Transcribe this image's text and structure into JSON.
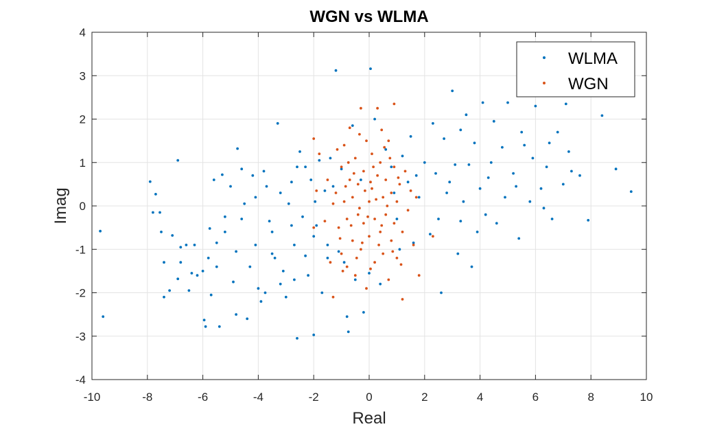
{
  "chart_data": {
    "type": "scatter",
    "title": "WGN vs WLMA",
    "xlabel": "Real",
    "ylabel": "Imag",
    "xlim": [
      -10,
      10
    ],
    "ylim": [
      -4,
      4
    ],
    "xticks": [
      -10,
      -8,
      -6,
      -4,
      -2,
      0,
      2,
      4,
      6,
      8,
      10
    ],
    "yticks": [
      -4,
      -3,
      -2,
      -1,
      0,
      1,
      2,
      3,
      4
    ],
    "grid": true,
    "legend_position": "top-right",
    "series": [
      {
        "name": "WLMA",
        "color": "#0072BD",
        "points": [
          [
            -9.7,
            -0.58
          ],
          [
            -9.6,
            -2.55
          ],
          [
            -7.9,
            0.56
          ],
          [
            -7.8,
            -0.15
          ],
          [
            -7.7,
            0.27
          ],
          [
            -7.55,
            -0.15
          ],
          [
            -7.4,
            -1.3
          ],
          [
            -7.4,
            -2.1
          ],
          [
            -7.2,
            -1.95
          ],
          [
            -7.1,
            -0.68
          ],
          [
            -6.9,
            1.05
          ],
          [
            -6.9,
            -1.68
          ],
          [
            -6.8,
            -0.95
          ],
          [
            -6.6,
            -0.9
          ],
          [
            -6.5,
            -1.95
          ],
          [
            -6.4,
            -1.55
          ],
          [
            -6.2,
            -1.6
          ],
          [
            -6.0,
            -1.5
          ],
          [
            -5.95,
            -2.63
          ],
          [
            -5.9,
            -2.78
          ],
          [
            -5.8,
            -1.2
          ],
          [
            -5.75,
            -0.52
          ],
          [
            -5.7,
            -2.05
          ],
          [
            -5.6,
            0.6
          ],
          [
            -5.5,
            -0.85
          ],
          [
            -5.4,
            -2.78
          ],
          [
            -5.3,
            0.72
          ],
          [
            -5.2,
            -0.25
          ],
          [
            -5.0,
            0.45
          ],
          [
            -4.9,
            -1.75
          ],
          [
            -4.8,
            -2.5
          ],
          [
            -4.75,
            1.32
          ],
          [
            -4.6,
            0.85
          ],
          [
            -4.5,
            0.05
          ],
          [
            -4.4,
            -2.6
          ],
          [
            -4.3,
            -1.4
          ],
          [
            -4.2,
            0.7
          ],
          [
            -4.1,
            -0.9
          ],
          [
            -4.0,
            -1.9
          ],
          [
            -3.9,
            -2.2
          ],
          [
            -3.8,
            0.8
          ],
          [
            -3.75,
            -2.0
          ],
          [
            -3.6,
            -0.35
          ],
          [
            -3.5,
            -1.1
          ],
          [
            -3.4,
            -1.2
          ],
          [
            -3.3,
            1.9
          ],
          [
            -3.2,
            0.3
          ],
          [
            -3.1,
            -1.5
          ],
          [
            -3.0,
            -2.1
          ],
          [
            -2.9,
            0.05
          ],
          [
            -2.8,
            -0.45
          ],
          [
            -2.7,
            -0.9
          ],
          [
            -2.6,
            0.9
          ],
          [
            -2.5,
            1.25
          ],
          [
            -2.4,
            -0.25
          ],
          [
            -2.3,
            -1.15
          ],
          [
            -2.2,
            -1.6
          ],
          [
            -2.1,
            0.6
          ],
          [
            -2.0,
            -0.7
          ],
          [
            -1.95,
            0.1
          ],
          [
            -1.9,
            -0.45
          ],
          [
            -1.8,
            1.05
          ],
          [
            -1.7,
            -2.0
          ],
          [
            -2.0,
            -2.97
          ],
          [
            -2.6,
            -3.05
          ],
          [
            -1.6,
            0.35
          ],
          [
            -1.5,
            -0.9
          ],
          [
            -1.4,
            1.1
          ],
          [
            -1.3,
            0.45
          ],
          [
            -1.2,
            3.12
          ],
          [
            -1.1,
            -1.05
          ],
          [
            -1.0,
            0.85
          ],
          [
            -0.9,
            -1.3
          ],
          [
            -0.8,
            -2.55
          ],
          [
            -0.75,
            -2.9
          ],
          [
            -0.6,
            1.85
          ],
          [
            -0.5,
            -1.7
          ],
          [
            -0.3,
            0.6
          ],
          [
            -0.2,
            -2.45
          ],
          [
            0.05,
            3.16
          ],
          [
            0.0,
            -1.55
          ],
          [
            0.2,
            2.0
          ],
          [
            0.4,
            -1.8
          ],
          [
            0.6,
            1.3
          ],
          [
            0.8,
            0.9
          ],
          [
            1.0,
            -0.3
          ],
          [
            1.2,
            1.15
          ],
          [
            1.4,
            0.55
          ],
          [
            1.6,
            -0.85
          ],
          [
            1.8,
            0.2
          ],
          [
            2.0,
            1.0
          ],
          [
            2.2,
            -0.65
          ],
          [
            2.4,
            0.75
          ],
          [
            2.6,
            -2.0
          ],
          [
            2.7,
            1.55
          ],
          [
            2.8,
            0.3
          ],
          [
            3.0,
            2.65
          ],
          [
            3.1,
            0.95
          ],
          [
            3.2,
            -1.1
          ],
          [
            3.3,
            1.75
          ],
          [
            3.4,
            0.1
          ],
          [
            3.6,
            0.95
          ],
          [
            3.7,
            -1.4
          ],
          [
            3.8,
            1.45
          ],
          [
            4.0,
            0.4
          ],
          [
            4.1,
            2.38
          ],
          [
            4.2,
            -0.2
          ],
          [
            4.4,
            1.0
          ],
          [
            4.6,
            -0.4
          ],
          [
            4.8,
            1.35
          ],
          [
            5.0,
            2.38
          ],
          [
            5.2,
            0.75
          ],
          [
            5.4,
            -0.75
          ],
          [
            5.6,
            1.4
          ],
          [
            5.8,
            0.1
          ],
          [
            6.0,
            2.3
          ],
          [
            6.2,
            0.4
          ],
          [
            6.4,
            0.9
          ],
          [
            6.6,
            -0.3
          ],
          [
            6.8,
            1.7
          ],
          [
            7.0,
            0.5
          ],
          [
            7.1,
            2.35
          ],
          [
            7.3,
            0.8
          ],
          [
            7.6,
            0.7
          ],
          [
            7.9,
            -0.33
          ],
          [
            8.4,
            2.08
          ],
          [
            8.9,
            0.85
          ],
          [
            9.45,
            0.33
          ],
          [
            1.5,
            1.6
          ],
          [
            2.3,
            1.9
          ],
          [
            3.5,
            2.1
          ],
          [
            4.5,
            1.95
          ],
          [
            5.5,
            1.7
          ],
          [
            6.5,
            1.45
          ],
          [
            1.1,
            -1.0
          ],
          [
            2.5,
            -0.3
          ],
          [
            3.9,
            -0.6
          ],
          [
            4.9,
            0.2
          ],
          [
            5.9,
            1.1
          ],
          [
            6.3,
            -0.05
          ],
          [
            7.2,
            1.25
          ],
          [
            0.9,
            0.3
          ],
          [
            1.7,
            0.7
          ],
          [
            2.9,
            0.55
          ],
          [
            3.3,
            -0.35
          ],
          [
            4.3,
            0.65
          ],
          [
            5.3,
            0.45
          ],
          [
            -3.5,
            -0.6
          ],
          [
            -2.8,
            0.55
          ],
          [
            -4.6,
            -0.3
          ],
          [
            -5.5,
            -1.4
          ],
          [
            -6.3,
            -0.9
          ],
          [
            -3.2,
            -1.8
          ],
          [
            -4.1,
            0.2
          ],
          [
            -2.3,
            0.9
          ],
          [
            -1.5,
            -1.2
          ],
          [
            -3.7,
            0.45
          ],
          [
            -4.8,
            -1.05
          ],
          [
            -5.2,
            -0.6
          ],
          [
            -6.8,
            -1.3
          ],
          [
            -7.5,
            -0.6
          ],
          [
            -2.7,
            -1.7
          ]
        ]
      },
      {
        "name": "WGN",
        "color": "#D95319",
        "points": [
          [
            -1.2,
            0.3
          ],
          [
            -1.1,
            -0.5
          ],
          [
            -1.0,
            0.9
          ],
          [
            -1.0,
            -1.1
          ],
          [
            -0.9,
            0.1
          ],
          [
            -0.9,
            1.4
          ],
          [
            -0.8,
            -0.3
          ],
          [
            -0.8,
            -1.4
          ],
          [
            -0.7,
            0.6
          ],
          [
            -0.7,
            1.8
          ],
          [
            -0.6,
            -0.8
          ],
          [
            -0.6,
            0.2
          ],
          [
            -0.5,
            1.1
          ],
          [
            -0.5,
            -1.6
          ],
          [
            -0.4,
            -0.2
          ],
          [
            -0.4,
            0.5
          ],
          [
            -0.3,
            2.25
          ],
          [
            -0.3,
            -1.0
          ],
          [
            -0.2,
            0.8
          ],
          [
            -0.2,
            -0.4
          ],
          [
            -0.1,
            1.5
          ],
          [
            -0.1,
            -1.9
          ],
          [
            0.0,
            0.1
          ],
          [
            0.0,
            -0.7
          ],
          [
            0.1,
            0.4
          ],
          [
            0.1,
            1.2
          ],
          [
            0.2,
            -0.3
          ],
          [
            0.2,
            -1.3
          ],
          [
            0.3,
            0.7
          ],
          [
            0.3,
            2.25
          ],
          [
            0.4,
            -0.6
          ],
          [
            0.4,
            1.0
          ],
          [
            0.5,
            0.2
          ],
          [
            0.5,
            -1.1
          ],
          [
            0.6,
            0.6
          ],
          [
            0.6,
            -0.2
          ],
          [
            0.7,
            1.5
          ],
          [
            0.7,
            -1.7
          ],
          [
            0.8,
            0.3
          ],
          [
            0.8,
            -0.8
          ],
          [
            0.9,
            0.9
          ],
          [
            0.9,
            -0.4
          ],
          [
            1.0,
            0.1
          ],
          [
            1.0,
            -1.2
          ],
          [
            1.1,
            0.5
          ],
          [
            1.2,
            -0.6
          ],
          [
            1.3,
            0.8
          ],
          [
            1.4,
            -0.1
          ],
          [
            1.5,
            0.35
          ],
          [
            1.6,
            -0.9
          ],
          [
            1.7,
            0.2
          ],
          [
            1.8,
            -1.6
          ],
          [
            2.3,
            -0.7
          ],
          [
            -1.8,
            1.2
          ],
          [
            -1.6,
            -0.35
          ],
          [
            -1.5,
            0.6
          ],
          [
            -1.4,
            -1.3
          ],
          [
            -1.3,
            0.05
          ],
          [
            -2.0,
            -0.5
          ],
          [
            -1.9,
            0.35
          ],
          [
            -2.0,
            1.55
          ],
          [
            1.2,
            -2.15
          ],
          [
            0.9,
            2.35
          ],
          [
            -1.3,
            -2.1
          ],
          [
            -0.35,
            -0.05
          ],
          [
            0.25,
            0.15
          ],
          [
            -0.15,
            0.35
          ],
          [
            0.45,
            -0.45
          ],
          [
            -0.55,
            0.75
          ],
          [
            0.65,
            0.0
          ],
          [
            -0.25,
            -0.85
          ],
          [
            0.15,
            0.9
          ],
          [
            -0.45,
            -1.2
          ],
          [
            0.35,
            -0.9
          ],
          [
            0.05,
            0.55
          ],
          [
            -0.65,
            -0.45
          ],
          [
            0.75,
            1.1
          ],
          [
            -0.85,
            0.45
          ],
          [
            0.55,
            1.35
          ],
          [
            -0.05,
            -0.25
          ],
          [
            0.85,
            -1.05
          ],
          [
            -0.75,
            1.0
          ],
          [
            1.05,
            0.65
          ],
          [
            -1.05,
            -0.75
          ],
          [
            0.05,
            -1.45
          ],
          [
            -0.35,
            1.65
          ],
          [
            0.45,
            1.75
          ],
          [
            -0.95,
            -1.5
          ],
          [
            1.15,
            -1.35
          ],
          [
            -1.15,
            1.3
          ]
        ]
      }
    ]
  }
}
